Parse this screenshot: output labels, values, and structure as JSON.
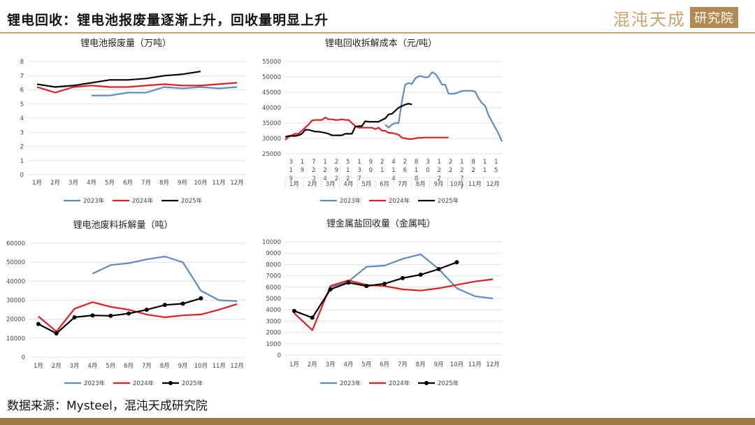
{
  "header": {
    "title": "锂电回收：锂电池报废量逐渐上升，回收量明显上升",
    "logo_text": "混沌天成",
    "logo_box": "研究院"
  },
  "footer": {
    "source": "数据来源：Mysteel，混沌天成研究院"
  },
  "colors": {
    "s2023": "#5b8dc0",
    "s2024": "#e02020",
    "s2025": "#000000",
    "accent": "#c9a46a"
  },
  "chart_data": [
    {
      "id": "scrap",
      "type": "line",
      "title": "锂电池报废量（万吨）",
      "categories": [
        "1月",
        "2月",
        "3月",
        "4月",
        "5月",
        "6月",
        "7月",
        "8月",
        "9月",
        "10月",
        "11月",
        "12月"
      ],
      "ylim": [
        0,
        8
      ],
      "yticks": [
        0,
        1,
        2,
        3,
        4,
        5,
        6,
        7,
        8
      ],
      "series": [
        {
          "name": "2023年",
          "values": [
            null,
            null,
            null,
            5.6,
            5.6,
            5.8,
            5.8,
            6.2,
            6.1,
            6.2,
            6.1,
            6.2
          ]
        },
        {
          "name": "2024年",
          "values": [
            6.2,
            5.8,
            6.2,
            6.3,
            6.2,
            6.2,
            6.3,
            6.4,
            6.3,
            6.3,
            6.4,
            6.5
          ]
        },
        {
          "name": "2025年",
          "values": [
            6.4,
            6.2,
            6.3,
            6.5,
            6.7,
            6.7,
            6.8,
            7.0,
            7.1,
            7.3,
            null,
            null
          ]
        }
      ],
      "legend": "bottom",
      "markers": false
    },
    {
      "id": "cost",
      "type": "line",
      "title": "锂电回收拆解成本（元/吨）",
      "ylim": [
        25000,
        55000
      ],
      "yticks": [
        25000,
        30000,
        35000,
        40000,
        45000,
        50000,
        55000
      ],
      "day_ticks": [
        [
          "3",
          "1",
          "9"
        ],
        [
          "1",
          "9"
        ],
        [
          "7",
          "2",
          "3"
        ],
        [
          "1",
          "2",
          "4"
        ],
        [
          "2",
          "9",
          "2"
        ],
        [
          "5",
          "1",
          "2"
        ],
        [
          "1",
          "3",
          "7"
        ],
        [
          "9",
          "0"
        ],
        [
          "2",
          "1"
        ],
        [
          "4",
          "1",
          "4"
        ],
        [
          "2",
          "6"
        ],
        [
          "8",
          "1",
          "8"
        ],
        [
          "3",
          "0"
        ],
        [
          "1",
          "2",
          "2"
        ],
        [
          "2",
          "2"
        ],
        [
          "1",
          "2",
          "7",
          "7"
        ],
        [
          "8",
          "2"
        ],
        [
          "1",
          "1"
        ],
        [
          "1",
          "5"
        ]
      ],
      "months": [
        "1月",
        "2月",
        "3月",
        "4月",
        "5月",
        "6月",
        "7月",
        "8月",
        "9月",
        "10月",
        "11月",
        "12月"
      ],
      "series": [
        {
          "name": "2023年",
          "values": [
            null,
            null,
            null,
            null,
            null,
            null,
            null,
            null,
            null,
            null,
            null,
            null,
            null,
            null,
            null,
            null,
            null,
            null,
            null,
            null,
            null,
            null,
            null,
            null,
            null,
            null,
            null,
            null,
            null,
            null,
            34500,
            33500,
            34500,
            35000,
            35000,
            42000,
            47500,
            48000,
            47700,
            49500,
            50200,
            50200,
            49800,
            50000,
            51500,
            51000,
            49500,
            47500,
            47500,
            44500,
            44500,
            44600,
            45000,
            45400,
            45500,
            45500,
            45500,
            45200,
            43000,
            41500,
            40500,
            37500,
            35500,
            33500,
            31500,
            29000
          ]
        },
        {
          "name": "2024年",
          "values": [
            29500,
            30500,
            31000,
            31500,
            31500,
            32500,
            33500,
            34500,
            35800,
            36000,
            36000,
            36000,
            36800,
            36200,
            36200,
            36000,
            36000,
            36200,
            36000,
            36000,
            35000,
            34000,
            33500,
            33500,
            33500,
            33500,
            33500,
            33000,
            33500,
            32500,
            32500,
            31800,
            31800,
            31500,
            31200,
            30200,
            30000,
            29800,
            29800,
            30000,
            30200,
            30200,
            30300,
            30300,
            30300,
            30300,
            30300,
            30300,
            30300,
            30300
          ]
        },
        {
          "name": "2025年",
          "values": [
            30500,
            30800,
            30800,
            30800,
            31000,
            31500,
            32800,
            32800,
            32500,
            32200,
            32200,
            32000,
            31800,
            31500,
            31000,
            31000,
            31000,
            31000,
            31500,
            31500,
            31500,
            33800,
            34000,
            34000,
            35600,
            35400,
            35400,
            35400,
            35400,
            36000,
            36500,
            37800,
            38000,
            39000,
            40000,
            40500,
            41000,
            41300,
            41000
          ]
        }
      ],
      "legend": "bottom",
      "markers": false
    },
    {
      "id": "dismantle",
      "type": "line",
      "title": "锂电池废料拆解量（吨）",
      "categories": [
        "1月",
        "2月",
        "3月",
        "4月",
        "5月",
        "6月",
        "7月",
        "8月",
        "9月",
        "10月",
        "11月",
        "12月"
      ],
      "ylim": [
        0,
        60000
      ],
      "yticks": [
        0,
        10000,
        20000,
        30000,
        40000,
        50000,
        60000
      ],
      "series": [
        {
          "name": "2023年",
          "values": [
            null,
            null,
            null,
            44000,
            48500,
            49500,
            51500,
            53000,
            50000,
            35000,
            30000,
            29500
          ]
        },
        {
          "name": "2024年",
          "values": [
            21500,
            13500,
            25500,
            29000,
            26500,
            25000,
            22500,
            21000,
            22000,
            22500,
            25000,
            28000
          ]
        },
        {
          "name": "2025年",
          "values": [
            17500,
            12500,
            21000,
            22000,
            21800,
            23000,
            25000,
            27500,
            28200,
            31000,
            null,
            null
          ]
        }
      ],
      "legend": "bottom",
      "markers_series": "2025年"
    },
    {
      "id": "recovery",
      "type": "line",
      "title": "锂金属盐回收量（金属吨）",
      "categories": [
        "1月",
        "2月",
        "3月",
        "4月",
        "5月",
        "6月",
        "7月",
        "8月",
        "9月",
        "10月",
        "11月",
        "12月"
      ],
      "ylim": [
        0,
        10000
      ],
      "yticks": [
        0,
        1000,
        2000,
        3000,
        4000,
        5000,
        6000,
        7000,
        8000,
        9000,
        10000
      ],
      "series": [
        {
          "name": "2023年",
          "values": [
            null,
            null,
            6000,
            6500,
            7800,
            7900,
            8500,
            8900,
            7600,
            5900,
            5200,
            5000
          ]
        },
        {
          "name": "2024年",
          "values": [
            3700,
            2200,
            6100,
            6600,
            6200,
            6100,
            5800,
            5700,
            5900,
            6200,
            6500,
            6700
          ]
        },
        {
          "name": "2025年",
          "values": [
            3900,
            3300,
            5800,
            6400,
            6100,
            6300,
            6800,
            7100,
            7600,
            8200,
            null,
            null
          ]
        }
      ],
      "legend": "bottom",
      "markers_series": "2025年"
    }
  ]
}
